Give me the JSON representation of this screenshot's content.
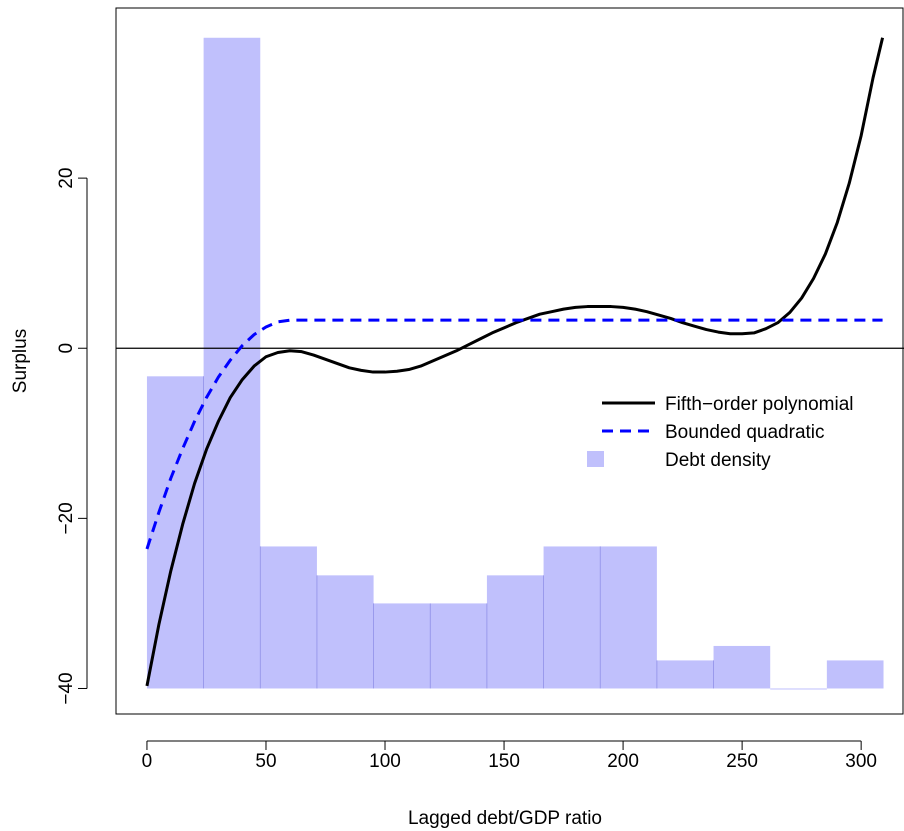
{
  "chart_data": {
    "type": "line",
    "title": "",
    "xlabel": "Lagged debt/GDP ratio",
    "ylabel": "Surplus",
    "xlim": [
      -13,
      318
    ],
    "ylim": [
      -43,
      40
    ],
    "x_ticks": [
      0,
      50,
      100,
      150,
      200,
      250,
      300
    ],
    "x_tick_labels": [
      "0",
      "50",
      "100",
      "150",
      "200",
      "250",
      "300"
    ],
    "y_ticks": [
      -40,
      -20,
      0,
      20
    ],
    "y_tick_labels": [
      "−40",
      "−20",
      "0",
      "20"
    ],
    "reference_line": {
      "y": 0,
      "color": "#000000"
    },
    "histogram": {
      "name": "Debt density",
      "color": "#c0c0fc",
      "border_color": "#9090e8",
      "baseline": -40,
      "bin_edges": [
        0,
        23.8,
        47.6,
        71.4,
        95.2,
        119,
        142.8,
        166.6,
        190.4,
        214.2,
        238,
        261.8,
        285.6,
        309.4
      ],
      "tops": [
        -3.3,
        36.5,
        -23.3,
        -26.7,
        -30,
        -30,
        -26.7,
        -23.3,
        -23.3,
        -36.7,
        -35,
        -40,
        -36.7
      ]
    },
    "series": [
      {
        "name": "Fifth−order polynomial",
        "style": "solid",
        "color": "#000000",
        "x": [
          0,
          5,
          10,
          15,
          20,
          25,
          30,
          35,
          40,
          45,
          50,
          55,
          60,
          65,
          70,
          75,
          80,
          85,
          90,
          95,
          100,
          105,
          110,
          115,
          120,
          125,
          130,
          135,
          140,
          145,
          150,
          155,
          160,
          165,
          170,
          175,
          180,
          185,
          190,
          195,
          200,
          205,
          210,
          215,
          220,
          225,
          230,
          235,
          240,
          245,
          250,
          255,
          260,
          265,
          270,
          275,
          280,
          285,
          290,
          295,
          300,
          305,
          309
        ],
        "y": [
          -39.7,
          -32.5,
          -26.2,
          -20.7,
          -15.9,
          -11.9,
          -8.6,
          -5.8,
          -3.7,
          -2.1,
          -1.0,
          -0.5,
          -0.3,
          -0.4,
          -0.8,
          -1.3,
          -1.8,
          -2.3,
          -2.6,
          -2.8,
          -2.8,
          -2.7,
          -2.5,
          -2.1,
          -1.5,
          -0.9,
          -0.3,
          0.4,
          1.1,
          1.8,
          2.4,
          3.0,
          3.5,
          4.0,
          4.3,
          4.6,
          4.8,
          4.9,
          4.9,
          4.9,
          4.8,
          4.6,
          4.3,
          3.9,
          3.5,
          3.0,
          2.6,
          2.2,
          1.9,
          1.7,
          1.7,
          1.8,
          2.3,
          3.0,
          4.2,
          5.9,
          8.2,
          11.1,
          14.8,
          19.4,
          25.0,
          31.8,
          36.5
        ]
      },
      {
        "name": "Bounded quadratic",
        "style": "dashed",
        "color": "#0000ff",
        "x": [
          0,
          5,
          10,
          15,
          20,
          25,
          30,
          35,
          40,
          45,
          50,
          55,
          60,
          309
        ],
        "y": [
          -23.6,
          -19.3,
          -15.3,
          -11.8,
          -8.6,
          -5.8,
          -3.4,
          -1.4,
          0.3,
          1.6,
          2.5,
          3.1,
          3.3,
          3.3
        ]
      }
    ],
    "legend": {
      "position": "right",
      "entries": [
        {
          "label": "Fifth−order polynomial",
          "kind": "line",
          "color": "#000000"
        },
        {
          "label": "Bounded quadratic",
          "kind": "dashed",
          "color": "#0000ff"
        },
        {
          "label": "Debt density",
          "kind": "box",
          "color": "#c0c0fc"
        }
      ]
    },
    "grid": false
  }
}
